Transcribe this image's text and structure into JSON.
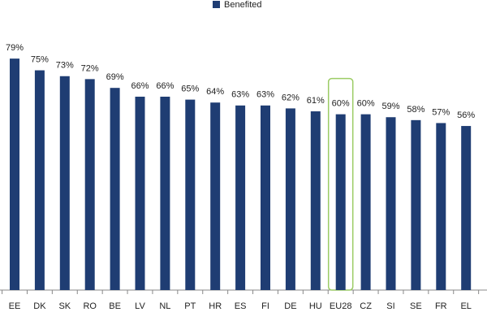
{
  "chart_data": {
    "type": "bar",
    "legend": "Benefited",
    "categories": [
      "EE",
      "DK",
      "SK",
      "RO",
      "BE",
      "LV",
      "NL",
      "PT",
      "HR",
      "ES",
      "FI",
      "DE",
      "HU",
      "EU28",
      "CZ",
      "SI",
      "SE",
      "FR",
      "EL"
    ],
    "values": [
      79,
      75,
      73,
      72,
      69,
      66,
      66,
      65,
      64,
      63,
      63,
      62,
      61,
      60,
      60,
      59,
      58,
      57,
      56
    ],
    "value_labels": [
      "79%",
      "75%",
      "73%",
      "72%",
      "69%",
      "66%",
      "66%",
      "65%",
      "64%",
      "63%",
      "63%",
      "62%",
      "61%",
      "60%",
      "60%",
      "59%",
      "58%",
      "57%",
      "56%"
    ],
    "color": "#1f3d73",
    "highlight": "EU28",
    "highlight_color": "#9ccc65",
    "ylim": [
      0,
      99
    ]
  }
}
